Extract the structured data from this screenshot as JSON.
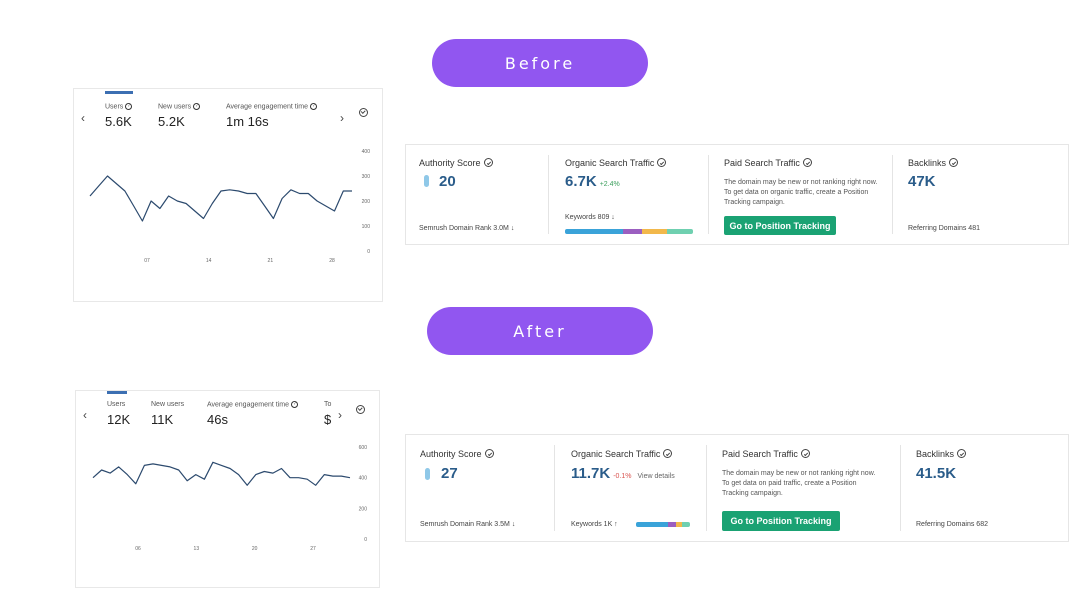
{
  "labels": {
    "before": "Before",
    "after": "After"
  },
  "colors": {
    "pill": "#9156f0",
    "chart_line": "#2c4a6e",
    "accent_value": "#2a5c8a",
    "button": "#1aa273",
    "kw_bar": [
      "#3aa3d9",
      "#9b5fc0",
      "#f2b84b",
      "#6fd0b0"
    ]
  },
  "before": {
    "analytics": {
      "metrics": [
        {
          "label": "Users",
          "value": "5.6K"
        },
        {
          "label": "New users",
          "value": "5.2K"
        },
        {
          "label": "Average engagement time",
          "value": "1m 16s"
        }
      ],
      "y_ticks": [
        "400",
        "300",
        "200",
        "100",
        "0"
      ],
      "x_ticks": [
        "07",
        "14",
        "21",
        "28"
      ],
      "chart_data": {
        "type": "line",
        "ylim": [
          0,
          400
        ],
        "values": [
          220,
          260,
          300,
          270,
          240,
          180,
          120,
          200,
          170,
          220,
          200,
          190,
          160,
          130,
          190,
          240,
          245,
          240,
          230,
          230,
          180,
          130,
          210,
          245,
          230,
          230,
          200,
          180,
          160,
          240,
          240
        ]
      }
    },
    "semrush": {
      "authority": {
        "label": "Authority Score",
        "value": "20",
        "footer": "Semrush Domain Rank  3.0M ↓"
      },
      "organic": {
        "label": "Organic Search Traffic",
        "value": "6.7K",
        "delta": "+2.4%",
        "keywords": "Keywords  809 ↓",
        "kw_shares": [
          0.45,
          0.15,
          0.2,
          0.2
        ]
      },
      "paid": {
        "label": "Paid Search Traffic",
        "note": "The domain may be new or not ranking right now. To get data on organic traffic, create a Position Tracking campaign.",
        "button": "Go to Position Tracking"
      },
      "backlinks": {
        "label": "Backlinks",
        "value": "47K",
        "footer": "Referring Domains  481"
      }
    }
  },
  "after": {
    "analytics": {
      "metrics": [
        {
          "label": "Users",
          "value": "12K"
        },
        {
          "label": "New users",
          "value": "11K"
        },
        {
          "label": "Average engagement time",
          "value": "46s"
        },
        {
          "label": "To",
          "value": "$"
        }
      ],
      "y_ticks": [
        "600",
        "400",
        "200",
        "0"
      ],
      "x_ticks": [
        "06",
        "13",
        "20",
        "27"
      ],
      "chart_data": {
        "type": "line",
        "ylim": [
          0,
          600
        ],
        "values": [
          400,
          450,
          430,
          470,
          420,
          360,
          480,
          490,
          480,
          470,
          450,
          380,
          420,
          390,
          500,
          480,
          460,
          420,
          350,
          420,
          440,
          430,
          460,
          400,
          400,
          390,
          350,
          420,
          410,
          410,
          400
        ]
      }
    },
    "semrush": {
      "authority": {
        "label": "Authority Score",
        "value": "27",
        "footer": "Semrush Domain Rank  3.5M ↓"
      },
      "organic": {
        "label": "Organic Search Traffic",
        "value": "11.7K",
        "delta": "-0.1%",
        "view": "View details",
        "keywords": "Keywords  1K ↑",
        "kw_shares": [
          0.6,
          0.15,
          0.1,
          0.15
        ]
      },
      "paid": {
        "label": "Paid Search Traffic",
        "note": "The domain may be new or not ranking right now. To get data on paid traffic, create a Position Tracking campaign.",
        "button": "Go to Position Tracking"
      },
      "backlinks": {
        "label": "Backlinks",
        "value": "41.5K",
        "footer": "Referring Domains  682"
      }
    }
  }
}
